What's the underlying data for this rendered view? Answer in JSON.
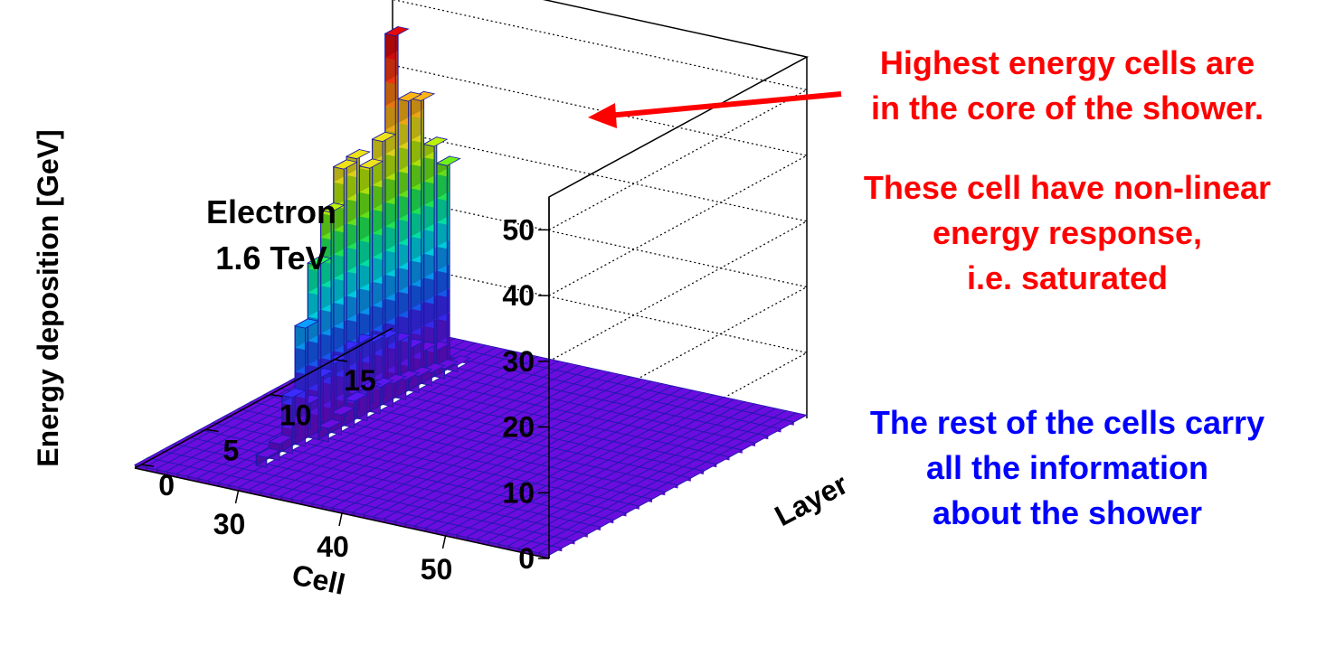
{
  "chart_data": {
    "type": "lego3d",
    "zlabel": "Energy deposition [GeV]",
    "xlabel": "Cell",
    "ylabel": "Layer",
    "zlim": [
      0,
      55
    ],
    "cell_range": [
      20,
      59
    ],
    "layer_range": [
      0,
      19
    ],
    "z_ticks": [
      "0",
      "10",
      "20",
      "30",
      "40",
      "50"
    ],
    "cell_ticks": [
      "30",
      "40",
      "50"
    ],
    "layer_ticks": [
      "0",
      "5",
      "10",
      "15"
    ],
    "inner_label": [
      "Electron",
      "1.6 TeV"
    ],
    "palette": [
      "#6a0dde",
      "#5a16ee",
      "#3b2bff",
      "#1760ff",
      "#0a9eff",
      "#00dcf0",
      "#05f0b0",
      "#22f55a",
      "#6ef21a",
      "#bdf20c",
      "#eee21a",
      "#ffb515",
      "#ff7e10",
      "#ff3a10",
      "#e40a0a"
    ],
    "hot_cells": [
      {
        "layer": 3,
        "cell": 28,
        "value": 1.5
      },
      {
        "layer": 4,
        "cell": 28,
        "value": 2.5
      },
      {
        "layer": 5,
        "cell": 28,
        "value": 8.5
      },
      {
        "layer": 6,
        "cell": 28,
        "value": 18
      },
      {
        "layer": 6,
        "cell": 27,
        "value": 3
      },
      {
        "layer": 7,
        "cell": 28,
        "value": 26.5
      },
      {
        "layer": 7,
        "cell": 27,
        "value": 5
      },
      {
        "layer": 7,
        "cell": 29,
        "value": 2
      },
      {
        "layer": 8,
        "cell": 28,
        "value": 33.5
      },
      {
        "layer": 8,
        "cell": 27,
        "value": 8
      },
      {
        "layer": 8,
        "cell": 29,
        "value": 3
      },
      {
        "layer": 9,
        "cell": 28,
        "value": 39
      },
      {
        "layer": 9,
        "cell": 27,
        "value": 9
      },
      {
        "layer": 9,
        "cell": 29,
        "value": 4
      },
      {
        "layer": 10,
        "cell": 28,
        "value": 39.5
      },
      {
        "layer": 10,
        "cell": 27,
        "value": 10
      },
      {
        "layer": 10,
        "cell": 29,
        "value": 4.5
      },
      {
        "layer": 11,
        "cell": 28,
        "value": 37
      },
      {
        "layer": 11,
        "cell": 27,
        "value": 10
      },
      {
        "layer": 11,
        "cell": 29,
        "value": 4
      },
      {
        "layer": 12,
        "cell": 28,
        "value": 40
      },
      {
        "layer": 12,
        "cell": 27,
        "value": 9
      },
      {
        "layer": 12,
        "cell": 29,
        "value": 3.5
      },
      {
        "layer": 13,
        "cell": 28,
        "value": 55
      },
      {
        "layer": 13,
        "cell": 27,
        "value": 8.5
      },
      {
        "layer": 13,
        "cell": 29,
        "value": 3
      },
      {
        "layer": 14,
        "cell": 28,
        "value": 44
      },
      {
        "layer": 14,
        "cell": 27,
        "value": 7
      },
      {
        "layer": 14,
        "cell": 29,
        "value": 2.5
      },
      {
        "layer": 15,
        "cell": 28,
        "value": 43
      },
      {
        "layer": 15,
        "cell": 27,
        "value": 5
      },
      {
        "layer": 15,
        "cell": 29,
        "value": 2
      },
      {
        "layer": 16,
        "cell": 28,
        "value": 35
      },
      {
        "layer": 16,
        "cell": 27,
        "value": 3.5
      },
      {
        "layer": 16,
        "cell": 29,
        "value": 1.5
      },
      {
        "layer": 17,
        "cell": 28,
        "value": 31
      },
      {
        "layer": 17,
        "cell": 27,
        "value": 2.5
      },
      {
        "layer": 17,
        "cell": 29,
        "value": 1
      }
    ],
    "floor_value": 0.5
  },
  "annotations": {
    "saturation": [
      "Highest energy cells are",
      "in the core of the shower.",
      "",
      "These cell have non-linear",
      "energy response,",
      "i.e. saturated"
    ],
    "rest": [
      "The rest of the cells carry",
      "all the information",
      "about the shower"
    ],
    "red_color": "#ff0000",
    "blue_color": "#0000ff"
  }
}
